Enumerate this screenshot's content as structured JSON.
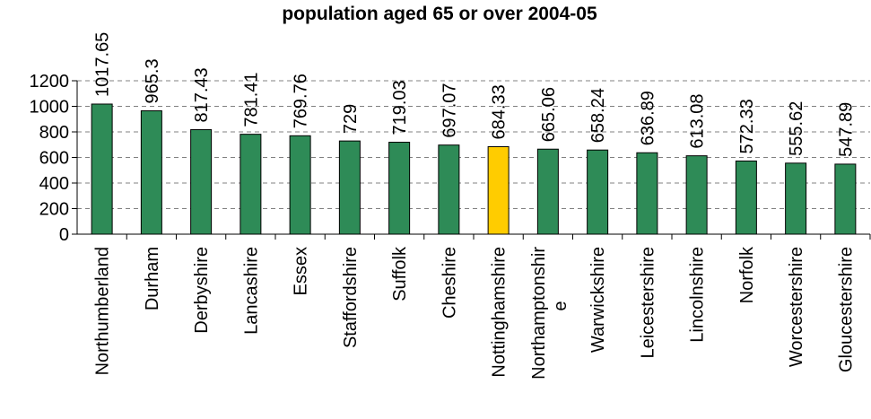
{
  "chart_data": {
    "type": "bar",
    "title": "population aged 65 or over 2004-05",
    "categories": [
      "Northumberland",
      "Durham",
      "Derbyshire",
      "Lancashire",
      "Essex",
      "Staffordshire",
      "Suffolk",
      "Cheshire",
      "Nottinghamshire",
      "Northamptonshire",
      "Warwickshire",
      "Leicestershire",
      "Lincolnshire",
      "Norfolk",
      "Worcestershire",
      "Gloucestershire"
    ],
    "category_label_lines": [
      [
        "Northumberland"
      ],
      [
        "Durham"
      ],
      [
        "Derbyshire"
      ],
      [
        "Lancashire"
      ],
      [
        "Essex"
      ],
      [
        "Staffordshire"
      ],
      [
        "Suffolk"
      ],
      [
        "Cheshire"
      ],
      [
        "Nottinghamshire"
      ],
      [
        "Northamptonshir",
        "e"
      ],
      [
        "Warwickshire"
      ],
      [
        "Leicestershire"
      ],
      [
        "Lincolnshire"
      ],
      [
        "Norfolk"
      ],
      [
        "Worcestershire"
      ],
      [
        "Gloucestershire"
      ]
    ],
    "values": [
      1017.65,
      965.3,
      817.43,
      781.41,
      769.76,
      729,
      719.03,
      697.07,
      684.33,
      665.06,
      658.24,
      636.89,
      613.08,
      572.33,
      555.62,
      547.89
    ],
    "data_labels": [
      "1017.65",
      "965.3",
      "817.43",
      "781.41",
      "769.76",
      "729",
      "719.03",
      "697.07",
      "684.33",
      "665.06",
      "658.24",
      "636.89",
      "613.08",
      "572.33",
      "555.62",
      "547.89"
    ],
    "highlight_category": "Nottinghamshire",
    "ylim": [
      0,
      1200
    ],
    "yticks": [
      0,
      200,
      400,
      600,
      800,
      1000,
      1200
    ],
    "grid": true,
    "colors": {
      "bar": "#2e8b57",
      "highlight": "#ffcc00",
      "outline": "#000000",
      "grid": "#808080"
    }
  }
}
